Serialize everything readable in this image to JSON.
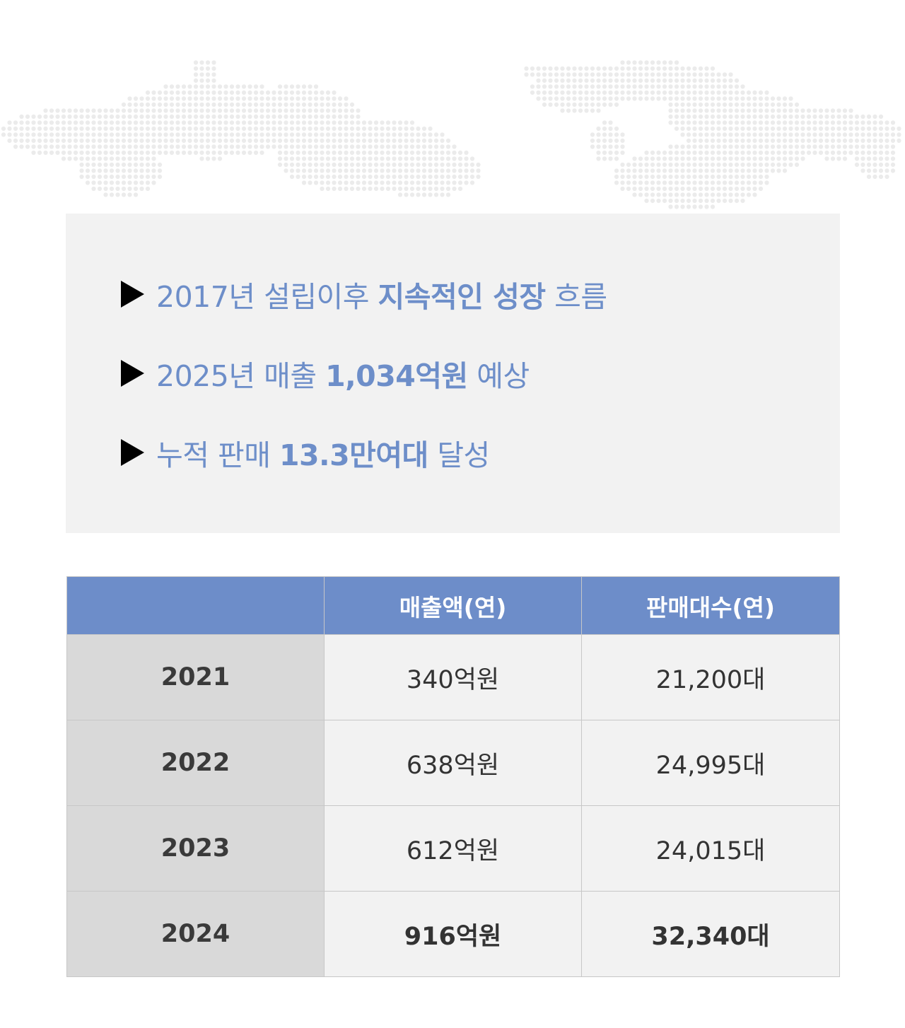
{
  "highlights": [
    {
      "prefix": "2017년 설립이후 ",
      "emphasis": "지속적인 성장",
      "suffix": " 흐름"
    },
    {
      "prefix": "2025년 매출 ",
      "emphasis": "1,034억원",
      "suffix": " 예상"
    },
    {
      "prefix": "누적 판매 ",
      "emphasis": "13.3만여대",
      "suffix": " 달성"
    }
  ],
  "table": {
    "headers": [
      "",
      "매출액(연)",
      "판매대수(연)"
    ],
    "rows": [
      {
        "year": "2021",
        "revenue": "340억원",
        "units": "21,200대"
      },
      {
        "year": "2022",
        "revenue": "638억원",
        "units": "24,995대"
      },
      {
        "year": "2023",
        "revenue": "612억원",
        "units": "24,015대"
      },
      {
        "year": "2024",
        "revenue": "916억원",
        "units": "32,340대"
      }
    ]
  },
  "colors": {
    "accent_text": "#6d8ec9",
    "header_bg": "#6d8dc9",
    "box_bg": "#f2f2f2",
    "year_cell_bg": "#d9d9d9",
    "map_dots": "#ebebeb"
  }
}
